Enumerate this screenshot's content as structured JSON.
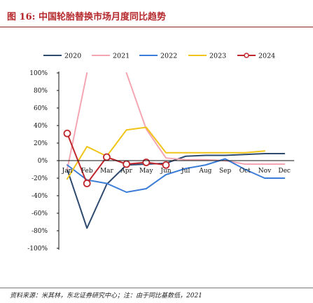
{
  "figure": {
    "title": "图 16: 中国轮胎替换市场月度同比趋势",
    "source": "资料来源：米其林，东北证券研究中心；注：由于同比基数低，2021"
  },
  "colors": {
    "title": "#b5282c",
    "axis": "#111111"
  },
  "chart_data": {
    "type": "line",
    "title": "",
    "xlabel": "",
    "ylabel": "",
    "categories": [
      "Jan",
      "Feb",
      "Mar",
      "Apr",
      "May",
      "Jun",
      "Jul",
      "Aug",
      "Sep",
      "Oct",
      "Nov",
      "Dec"
    ],
    "yticks": [
      "100%",
      "80%",
      "60%",
      "40%",
      "20%",
      "0%",
      "-20%",
      "-40%",
      "-60%",
      "-80%",
      "-100%"
    ],
    "ylim": [
      -100,
      100
    ],
    "grid": false,
    "legend_position": "top",
    "series": [
      {
        "name": "2020",
        "color": "#2e4a6f",
        "marker": "none",
        "values": [
          -10,
          -77,
          -27,
          -5,
          -4,
          -3,
          5,
          6,
          6,
          7,
          8,
          8
        ]
      },
      {
        "name": "2021",
        "color": "#f4a7b2",
        "marker": "none",
        "values": [
          -10,
          100,
          null,
          100,
          36,
          3,
          1,
          1,
          0,
          -4,
          -4,
          -4
        ]
      },
      {
        "name": "2022",
        "color": "#3b7dd8",
        "marker": "none",
        "values": [
          -5,
          -22,
          -26,
          -36,
          -32,
          -16,
          -9,
          -5,
          2,
          -10,
          -20,
          -20
        ]
      },
      {
        "name": "2023",
        "color": "#f0c419",
        "marker": "none",
        "values": [
          -21,
          16,
          5,
          35,
          38,
          9,
          9,
          9,
          9,
          9,
          11,
          null
        ]
      },
      {
        "name": "2024",
        "color": "#c0282e",
        "marker": "circle",
        "values": [
          31,
          -26,
          4,
          -4,
          -2,
          -5,
          null,
          null,
          null,
          null,
          null,
          null
        ]
      }
    ]
  }
}
